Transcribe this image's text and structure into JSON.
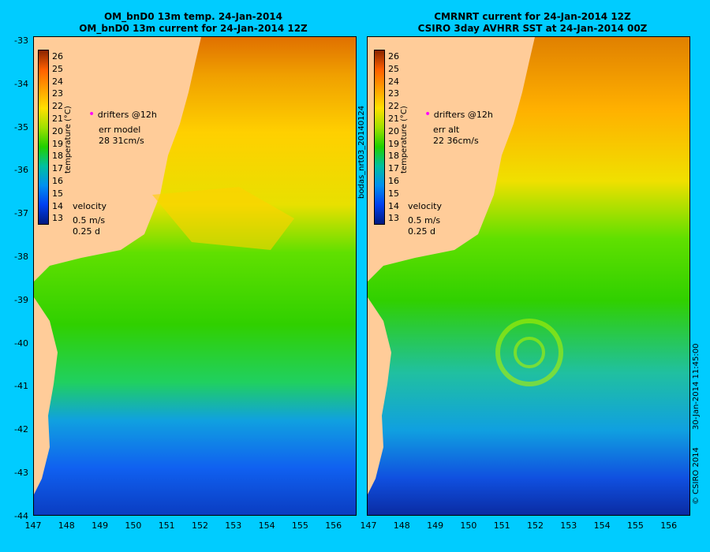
{
  "left_panel": {
    "title_line1": "OM_bnD0 13m temp. 24-Jan-2014",
    "title_line2": "OM_bnD0 13m current for 24-Jan-2014 12Z",
    "drifters_label": "drifters @12h",
    "err_label": "err model",
    "err_value": "28 31cm/s",
    "velocity_label": "velocity",
    "velocity_scale": "0.5 m/s",
    "velocity_time": "0.25 d",
    "colorbar_title": "temperature (°C)"
  },
  "right_panel": {
    "title_line1": "CMRNRT current for 24-Jan-2014 12Z",
    "title_line2": "CSIRO 3day AVHRR SST at 24-Jan-2014 00Z",
    "drifters_label": "drifters @12h",
    "err_label": "err alt",
    "err_value": "22 36cm/s",
    "velocity_label": "velocity",
    "velocity_scale": "0.5 m/s",
    "velocity_time": "0.25 d",
    "colorbar_title": "temperature (°C)",
    "side_label": "bodas_nrt03_20140124"
  },
  "colorbar_ticks": [
    "26",
    "25",
    "24",
    "23",
    "22",
    "21",
    "20",
    "19",
    "18",
    "17",
    "16",
    "15",
    "14",
    "13"
  ],
  "y_ticks": [
    "-33",
    "-34",
    "-35",
    "-36",
    "-37",
    "-38",
    "-39",
    "-40",
    "-41",
    "-42",
    "-43",
    "-44"
  ],
  "x_ticks": [
    "147",
    "148",
    "149",
    "150",
    "151",
    "152",
    "153",
    "154",
    "155",
    "156"
  ],
  "footer_right": "30-Jan-2014 11:45:00",
  "footer_copyright": "© CSIRO 2014",
  "colors": {
    "background": "#00ccff",
    "land": "#ffcc99",
    "drifters": "#ff00ff"
  }
}
